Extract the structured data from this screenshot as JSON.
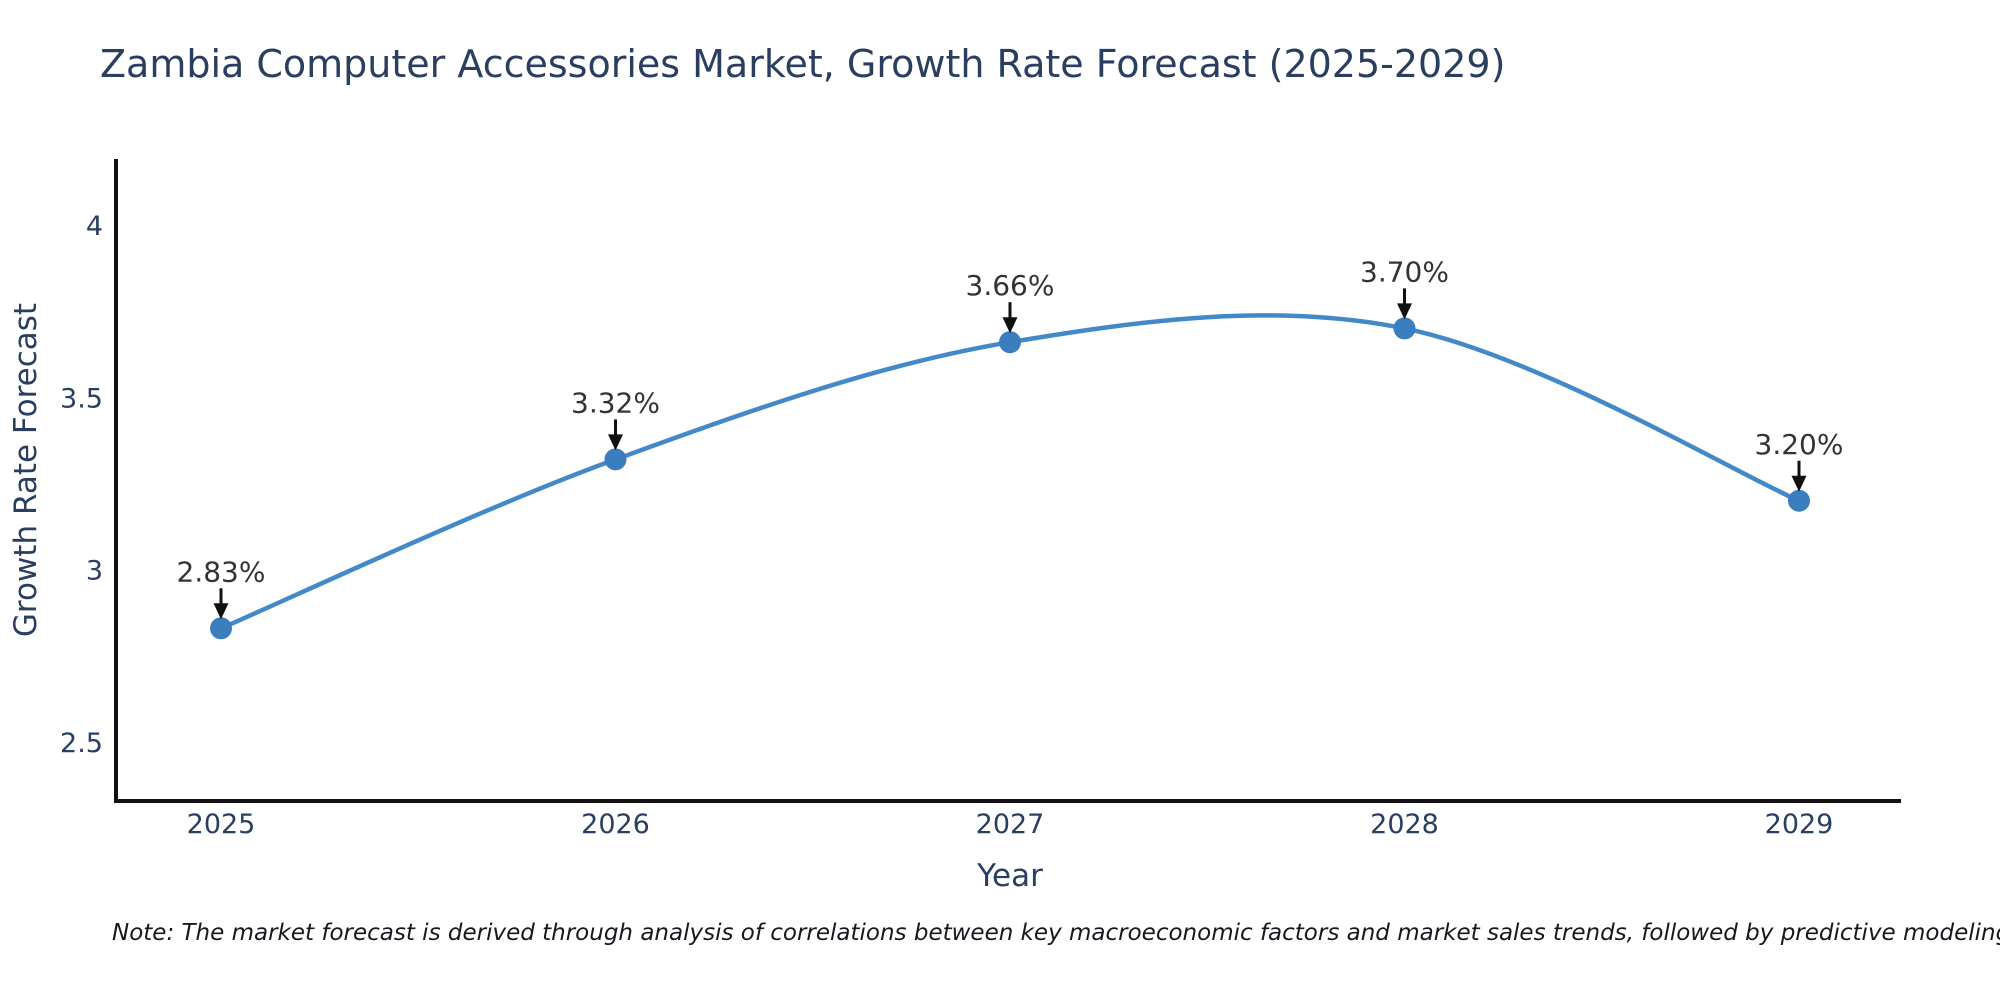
{
  "chart_data": {
    "type": "line",
    "line_shape": "spline",
    "title": "Zambia Computer Accessories Market, Growth Rate Forecast (2025-2029)",
    "xlabel": "Year",
    "ylabel": "Growth Rate Forecast",
    "categories": [
      "2025",
      "2026",
      "2027",
      "2028",
      "2029"
    ],
    "series": [
      {
        "name": "Growth Rate Forecast",
        "values": [
          2.83,
          3.32,
          3.66,
          3.7,
          3.2
        ]
      }
    ],
    "point_labels": [
      "2.83%",
      "3.32%",
      "3.66%",
      "3.70%",
      "3.20%"
    ],
    "yticks": [
      4,
      3.5,
      3,
      2.5
    ],
    "ylim": [
      2.33,
      4.19
    ],
    "grid": false,
    "legend_position": "none",
    "annotations_style": "value label with down arrow above each point",
    "colors": {
      "line": "#4389c8",
      "marker": "#3a7ebf",
      "axis": "#111111",
      "axis_text": "#2a3f5f",
      "annotation_text": "#333333",
      "arrow": "#111111",
      "background": "#ffffff"
    },
    "note": "Note: The market forecast is derived through analysis of correlations between key macroeconomic factors and market sales trends, followed by predictive modeling to project future sales"
  }
}
